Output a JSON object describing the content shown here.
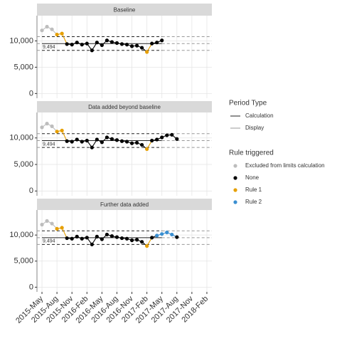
{
  "chart_data": [
    {
      "type": "line",
      "title": "Baseline",
      "x": [
        "2015-May",
        "2015-Jun",
        "2015-Jul",
        "2015-Aug",
        "2015-Sep",
        "2015-Oct",
        "2015-Nov",
        "2015-Dec",
        "2016-Jan",
        "2016-Feb",
        "2016-Mar",
        "2016-Apr",
        "2016-May",
        "2016-Jun",
        "2016-Jul",
        "2016-Aug",
        "2016-Sep",
        "2016-Oct",
        "2016-Nov",
        "2016-Dec",
        "2017-Jan",
        "2017-Feb",
        "2017-Mar",
        "2017-Apr",
        "2017-May"
      ],
      "values": [
        12000,
        12700,
        12200,
        11200,
        11400,
        9400,
        9300,
        9700,
        9300,
        9500,
        8200,
        9700,
        9200,
        10100,
        9800,
        9600,
        9400,
        9300,
        9000,
        9100,
        8700,
        7900,
        9500,
        9700,
        10100
      ],
      "rule": [
        0,
        0,
        0,
        2,
        2,
        1,
        1,
        1,
        1,
        1,
        1,
        1,
        1,
        1,
        1,
        1,
        1,
        1,
        1,
        1,
        1,
        2,
        1,
        1,
        1
      ],
      "center": 9494,
      "center_label": "9,494",
      "ucl": 10800,
      "lcl": 8200,
      "calc_period": [
        "2015-May",
        "2017-May"
      ],
      "xlim": [
        "2015-Apr",
        "2018-Mar"
      ],
      "xticks": [
        "2015-May",
        "2015-Aug",
        "2015-Nov",
        "2016-Feb",
        "2016-May",
        "2016-Aug",
        "2016-Nov",
        "2017-Feb",
        "2017-May",
        "2017-Aug",
        "2017-Nov",
        "2018-Feb"
      ],
      "ylim": [
        -900,
        14800
      ],
      "yticks": [
        0,
        {
          "value": 5000,
          "label": "5,000"
        },
        {
          "value": 10000,
          "label": "10,000"
        }
      ]
    },
    {
      "type": "line",
      "title": "Data added beyond baseline",
      "x": [
        "2015-May",
        "2015-Jun",
        "2015-Jul",
        "2015-Aug",
        "2015-Sep",
        "2015-Oct",
        "2015-Nov",
        "2015-Dec",
        "2016-Jan",
        "2016-Feb",
        "2016-Mar",
        "2016-Apr",
        "2016-May",
        "2016-Jun",
        "2016-Jul",
        "2016-Aug",
        "2016-Sep",
        "2016-Oct",
        "2016-Nov",
        "2016-Dec",
        "2017-Jan",
        "2017-Feb",
        "2017-Mar",
        "2017-Apr",
        "2017-May",
        "2017-Jun",
        "2017-Jul",
        "2017-Aug"
      ],
      "values": [
        12000,
        12700,
        12200,
        11200,
        11400,
        9400,
        9300,
        9700,
        9300,
        9500,
        8200,
        9700,
        9200,
        10100,
        9800,
        9600,
        9400,
        9300,
        9000,
        9100,
        8700,
        7900,
        9500,
        9700,
        10100,
        10500,
        10600,
        9800
      ],
      "rule": [
        0,
        0,
        0,
        2,
        2,
        1,
        1,
        1,
        1,
        1,
        1,
        1,
        1,
        1,
        1,
        1,
        1,
        1,
        1,
        1,
        1,
        2,
        1,
        1,
        1,
        1,
        1,
        1
      ],
      "center": 9494,
      "center_label": "9,494",
      "ucl": 10800,
      "lcl": 8200,
      "calc_period": [
        "2015-May",
        "2017-May"
      ],
      "xlim": [
        "2015-Apr",
        "2018-Mar"
      ],
      "xticks": [
        "2015-May",
        "2015-Aug",
        "2015-Nov",
        "2016-Feb",
        "2016-May",
        "2016-Aug",
        "2016-Nov",
        "2017-Feb",
        "2017-May",
        "2017-Aug",
        "2017-Nov",
        "2018-Feb"
      ],
      "ylim": [
        -900,
        14800
      ],
      "yticks": [
        0,
        {
          "value": 5000,
          "label": "5,000"
        },
        {
          "value": 10000,
          "label": "10,000"
        }
      ]
    },
    {
      "type": "line",
      "title": "Further data added",
      "x": [
        "2015-May",
        "2015-Jun",
        "2015-Jul",
        "2015-Aug",
        "2015-Sep",
        "2015-Oct",
        "2015-Nov",
        "2015-Dec",
        "2016-Jan",
        "2016-Feb",
        "2016-Mar",
        "2016-Apr",
        "2016-May",
        "2016-Jun",
        "2016-Jul",
        "2016-Aug",
        "2016-Sep",
        "2016-Oct",
        "2016-Nov",
        "2016-Dec",
        "2017-Jan",
        "2017-Feb",
        "2017-Mar",
        "2017-Apr",
        "2017-May",
        "2017-Jun",
        "2017-Jul",
        "2017-Aug"
      ],
      "values": [
        12000,
        12700,
        12200,
        11200,
        11400,
        9400,
        9300,
        9700,
        9300,
        9500,
        8200,
        9700,
        9200,
        10100,
        9800,
        9600,
        9400,
        9300,
        9000,
        9100,
        8700,
        7900,
        9500,
        9900,
        10200,
        10500,
        10100,
        9600
      ],
      "rule": [
        0,
        0,
        0,
        2,
        2,
        1,
        1,
        1,
        1,
        1,
        1,
        1,
        1,
        1,
        1,
        1,
        1,
        1,
        1,
        1,
        1,
        2,
        1,
        3,
        3,
        3,
        3,
        1
      ],
      "center": 9494,
      "center_label": "9,494",
      "ucl": 10800,
      "lcl": 8200,
      "calc_period": [
        "2015-May",
        "2017-May"
      ],
      "xlim": [
        "2015-Apr",
        "2018-Mar"
      ],
      "xticks": [
        "2015-May",
        "2015-Aug",
        "2015-Nov",
        "2016-Feb",
        "2016-May",
        "2016-Aug",
        "2016-Nov",
        "2017-Feb",
        "2017-May",
        "2017-Aug",
        "2017-Nov",
        "2018-Feb"
      ],
      "ylim": [
        -900,
        14800
      ],
      "yticks": [
        0,
        {
          "value": 5000,
          "label": "5,000"
        },
        {
          "value": 10000,
          "label": "10,000"
        }
      ]
    }
  ],
  "legend": {
    "period_title": "Period Type",
    "period": [
      {
        "name": "Calculation",
        "color": "#222222"
      },
      {
        "name": "Display",
        "color": "#999999"
      }
    ],
    "rule_title": "Rule triggered",
    "rules": [
      {
        "name": "Excluded from limits calculation",
        "color": "#bdbdbd"
      },
      {
        "name": "None",
        "color": "#000000"
      },
      {
        "name": "Rule 1",
        "color": "#e69f00"
      },
      {
        "name": "Rule 2",
        "color": "#3b8fd1"
      }
    ]
  }
}
